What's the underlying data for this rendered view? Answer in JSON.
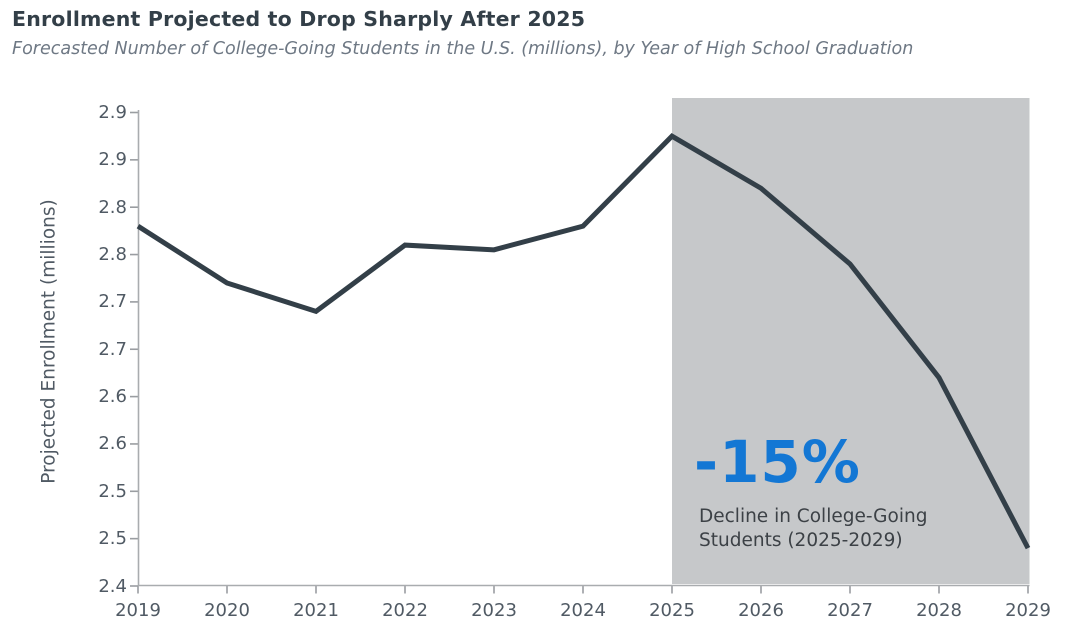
{
  "chart_data": {
    "type": "line",
    "title": "Enrollment Projected to Drop Sharply After 2025",
    "subtitle": "Forecasted Number of College-Going Students in the U.S. (millions), by Year of High School Graduation",
    "xlabel": "",
    "ylabel": "Projected Enrollment (millions)",
    "x": [
      2019,
      2020,
      2021,
      2022,
      2023,
      2024,
      2025,
      2026,
      2027,
      2028,
      2029
    ],
    "x_tick_labels": [
      "2019",
      "2020",
      "2021",
      "2022",
      "2023",
      "2024",
      "2025",
      "2026",
      "2027",
      "2028",
      "2029"
    ],
    "series": [
      {
        "name": "Projected Enrollment (millions)",
        "values": [
          2.78,
          2.72,
          2.69,
          2.76,
          2.755,
          2.78,
          2.875,
          2.82,
          2.74,
          2.62,
          2.44
        ]
      }
    ],
    "ylim": [
      2.4,
      2.9
    ],
    "y_tick_values": [
      2.9,
      2.85,
      2.8,
      2.75,
      2.7,
      2.65,
      2.6,
      2.55,
      2.5,
      2.45,
      2.4
    ],
    "y_tick_labels": [
      "2.9",
      "2.9",
      "2.8",
      "2.8",
      "2.7",
      "2.7",
      "2.6",
      "2.6",
      "2.5",
      "2.5",
      "2.4"
    ],
    "grid": false,
    "legend": "none",
    "line_color": "#333f48",
    "axis_color": "#a9acaf",
    "highlight_region": {
      "x_start": 2025,
      "x_end": 2029,
      "color": "#c6c8ca"
    },
    "annotation": {
      "headline": "-15%",
      "headline_color": "#1377d4",
      "line1": "Decline in College-Going",
      "line2": "Students (2025-2029)"
    }
  }
}
